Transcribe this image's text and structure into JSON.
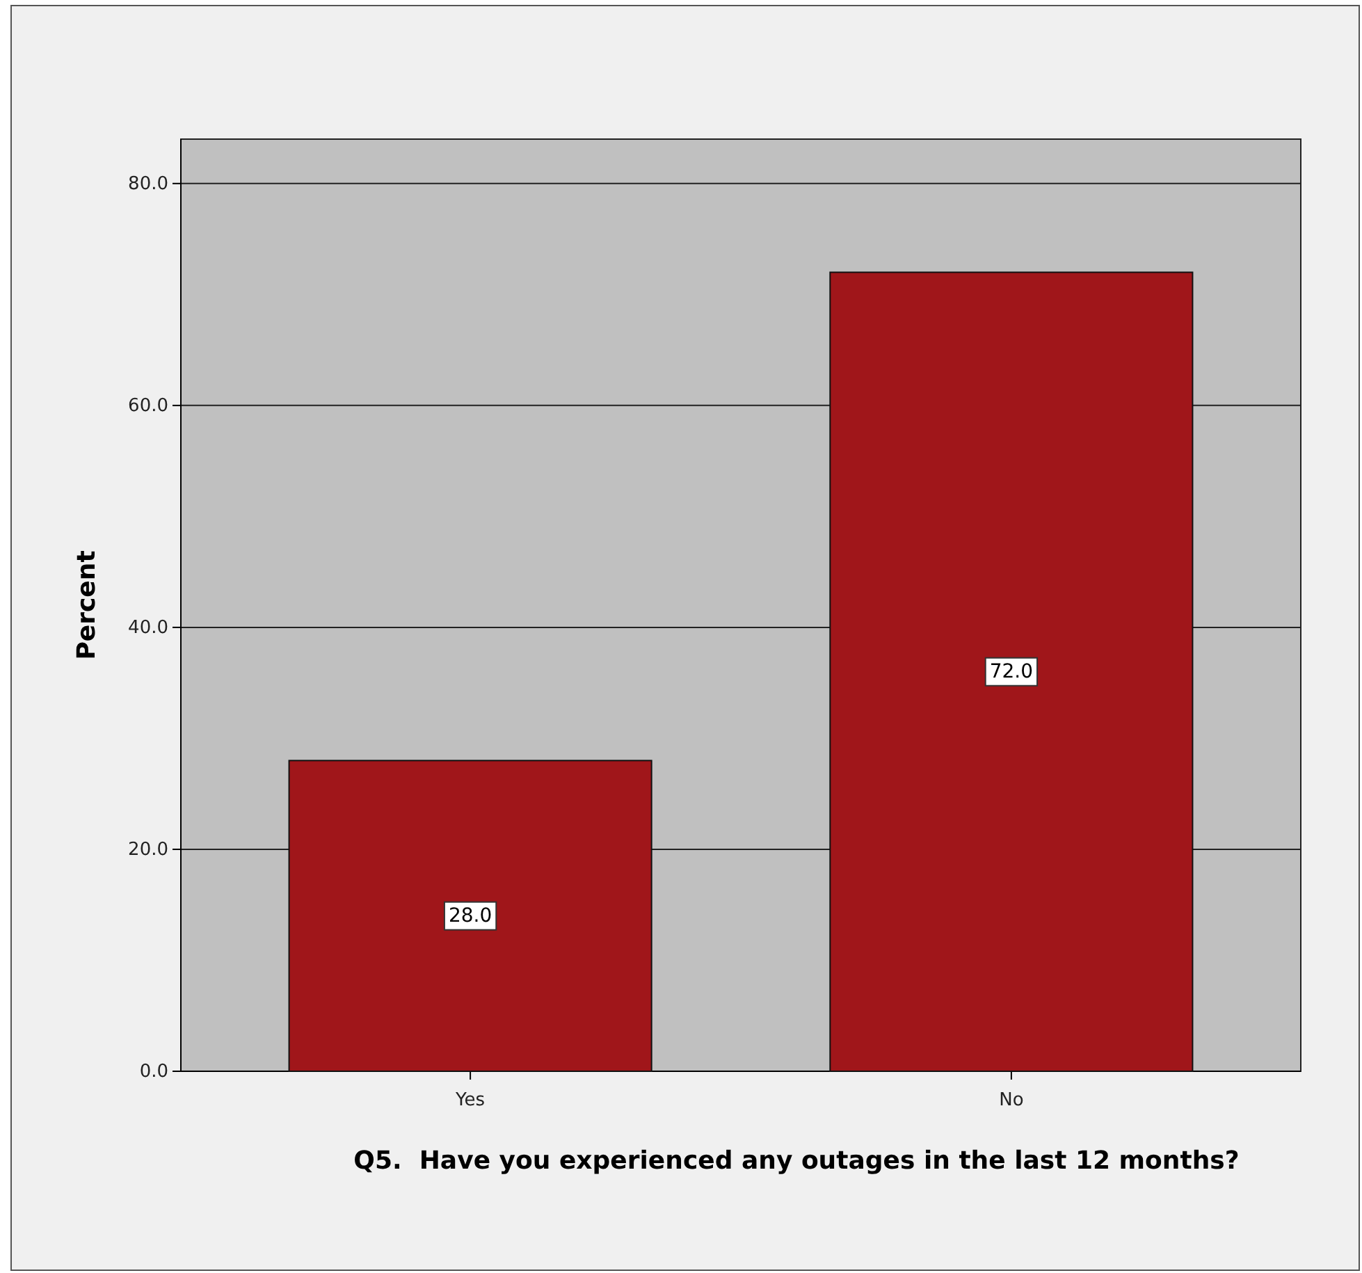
{
  "chart_data": {
    "type": "bar",
    "categories": [
      "Yes",
      "No"
    ],
    "values": [
      28,
      72
    ],
    "value_labels": [
      "28.0",
      "72.0"
    ],
    "color": "#a0161a",
    "xlabel": "Q5.  Have you experienced any outages in the last 12 months?",
    "ylabel": "Percent",
    "ylim": [
      0,
      84
    ],
    "yticks": [
      {
        "value": 0,
        "label": "0.0"
      },
      {
        "value": 20,
        "label": "20.0"
      },
      {
        "value": 40,
        "label": "40.0"
      },
      {
        "value": 60,
        "label": "60.0"
      },
      {
        "value": 80,
        "label": "80.0"
      }
    ],
    "grid": "y"
  }
}
